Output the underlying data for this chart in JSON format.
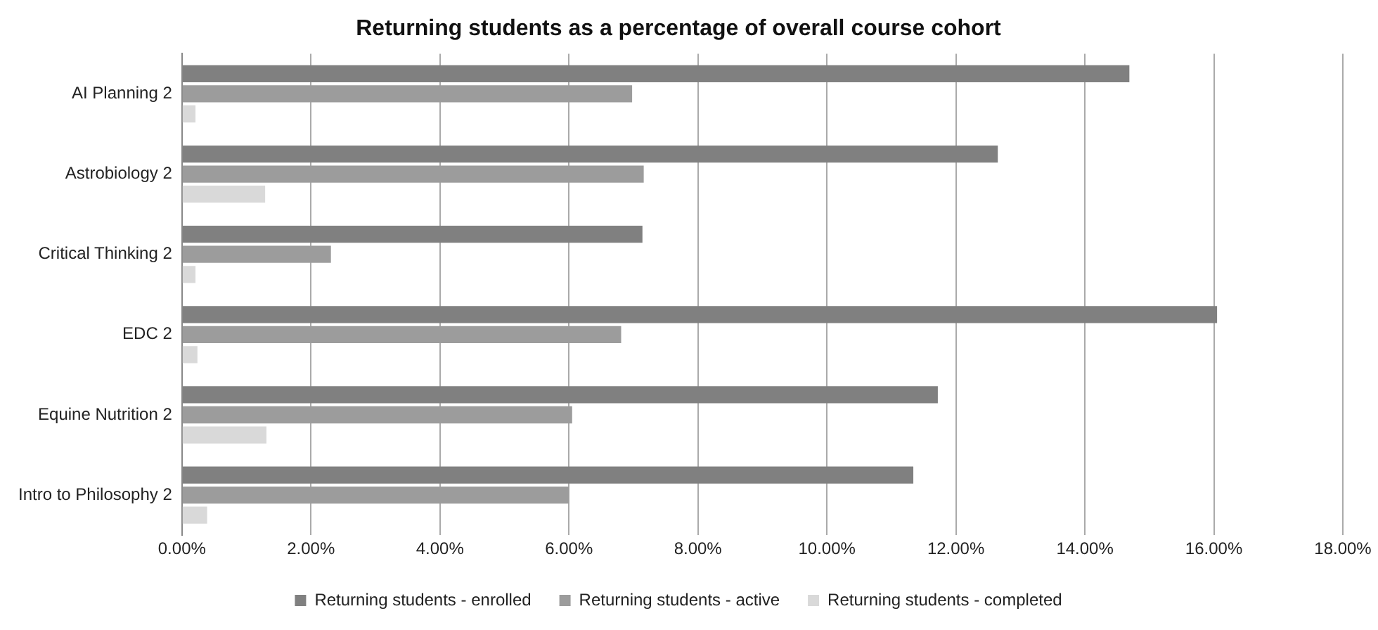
{
  "chart_data": {
    "type": "bar",
    "orientation": "horizontal",
    "title": "Returning students as a percentage of overall course cohort",
    "categories": [
      "AI Planning 2",
      "Astrobiology 2",
      "Critical Thinking 2",
      "EDC 2",
      "Equine Nutrition 2",
      "Intro to Philosophy 2"
    ],
    "series": [
      {
        "name": "Returning students - enrolled",
        "color": "#808080",
        "values": [
          14.69,
          12.65,
          7.14,
          16.05,
          11.72,
          11.34
        ]
      },
      {
        "name": "Returning students - active",
        "color": "#9c9c9c",
        "values": [
          6.98,
          7.16,
          2.31,
          6.81,
          6.05,
          6.0
        ]
      },
      {
        "name": "Returning students - completed",
        "color": "#d9d9d9",
        "values": [
          0.21,
          1.29,
          0.21,
          0.24,
          1.31,
          0.39
        ]
      }
    ],
    "xlim": [
      0,
      18
    ],
    "xticks": [
      {
        "value": 0,
        "label": "0.00%"
      },
      {
        "value": 2,
        "label": "2.00%"
      },
      {
        "value": 4,
        "label": "4.00%"
      },
      {
        "value": 6,
        "label": "6.00%"
      },
      {
        "value": 8,
        "label": "8.00%"
      },
      {
        "value": 10,
        "label": "10.00%"
      },
      {
        "value": 12,
        "label": "12.00%"
      },
      {
        "value": 14,
        "label": "14.00%"
      },
      {
        "value": 16,
        "label": "16.00%"
      },
      {
        "value": 18,
        "label": "18.00%"
      }
    ],
    "grid": "x",
    "legend": "bottom"
  }
}
